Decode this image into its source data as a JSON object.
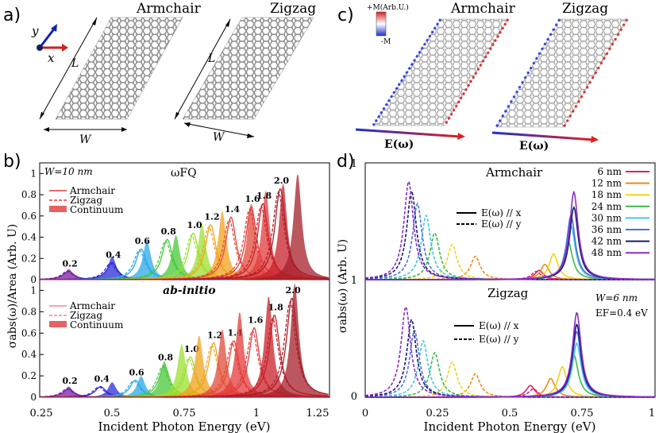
{
  "panels": {
    "a": "a)",
    "b": "b)",
    "c": "c)",
    "d": "d)"
  },
  "panel_a": {
    "title_left": "Armchair",
    "title_right": "Zigzag",
    "axis_y": "y",
    "axis_x": "x",
    "length_label": "L",
    "width_label_left": "W",
    "width_label_right": "W"
  },
  "panel_c": {
    "title_left": "Armchair",
    "title_right": "Zigzag",
    "colorbar_top": "+M(Arb.U.)",
    "colorbar_bottom": "-M",
    "field_left": "E(ω)",
    "field_right": "E(ω)"
  },
  "colors": {
    "armchair_red": "#e23a3a",
    "blue": "#2b2bd6",
    "lime": "#9be030"
  },
  "chart_data": [
    {
      "type": "line",
      "panel": "b-top",
      "title": "ωFQ",
      "annotation": "W=10 nm",
      "xlim": [
        0.25,
        1.25
      ],
      "ylim": [
        0,
        1.1
      ],
      "yticks": [
        "0",
        "0.2",
        "0.4",
        "0.6",
        "0.8",
        "1"
      ],
      "legend": [
        "Armchair",
        "Zigzag",
        "Continuum"
      ],
      "legend_position": "top-left",
      "series_fermi_eV": [
        0.2,
        0.4,
        0.6,
        0.8,
        1.0,
        1.2,
        1.4,
        1.6,
        1.8,
        2.0
      ],
      "series_labels": [
        "0.2",
        "0.4",
        "0.6",
        "0.8",
        "1.0",
        "1.2",
        "1.4",
        "1.6",
        "1.8",
        "2.0"
      ],
      "peak_x": [
        0.35,
        0.5,
        0.6,
        0.69,
        0.78,
        0.84,
        0.91,
        0.98,
        1.02,
        1.08
      ],
      "peak_y": [
        0.08,
        0.16,
        0.29,
        0.38,
        0.44,
        0.52,
        0.59,
        0.69,
        0.72,
        0.86
      ],
      "continuum_peak_x": [
        0.35,
        0.5,
        0.62,
        0.72,
        0.81,
        0.88,
        0.98,
        1.03,
        1.09,
        1.14
      ],
      "continuum_peak_y": [
        0.1,
        0.22,
        0.37,
        0.42,
        0.53,
        0.65,
        0.72,
        0.84,
        0.91,
        1.0
      ]
    },
    {
      "type": "line",
      "panel": "b-bottom",
      "title": "ab-initio",
      "xlim": [
        0.25,
        1.25
      ],
      "ylim": [
        0,
        1.1
      ],
      "yticks": [
        "0",
        "0.2",
        "0.4",
        "0.6",
        "0.8",
        "1"
      ],
      "xticks": [
        "0.25",
        "0.5",
        "0.75",
        "1",
        "1.25"
      ],
      "xlabel": "Incident Photon Energy (eV)",
      "ylabel": "σabs(ω)/Area (Arb. U)",
      "legend": [
        "Armchair",
        "Zigzag",
        "Continuum"
      ],
      "series_labels": [
        "0.2",
        "0.4",
        "0.6",
        "0.8",
        "1.0",
        "1.2",
        "1.4",
        "1.6",
        "1.8",
        "2.0"
      ],
      "peak_x": [
        0.35,
        0.46,
        0.58,
        0.68,
        0.77,
        0.85,
        0.92,
        0.99,
        1.06,
        1.12
      ],
      "peak_y": [
        0.08,
        0.1,
        0.16,
        0.3,
        0.38,
        0.51,
        0.53,
        0.65,
        0.77,
        0.93
      ],
      "continuum_peak_x": [
        0.35,
        0.5,
        0.6,
        0.68,
        0.74,
        0.8,
        0.88,
        0.94,
        1.04,
        1.13
      ],
      "continuum_peak_y": [
        0.1,
        0.14,
        0.2,
        0.34,
        0.5,
        0.58,
        0.64,
        0.8,
        0.95,
        1.07
      ]
    },
    {
      "type": "line",
      "panel": "d-top",
      "title": "Armchair",
      "xlim": [
        0,
        1
      ],
      "ylim": [
        0,
        1
      ],
      "yticks": [
        "1"
      ],
      "legend": [
        "E(ω) // x",
        "E(ω) // y"
      ],
      "widths_nm": [
        "6 nm",
        "12 nm",
        "18 nm",
        "24 nm",
        "30 nm",
        "36 nm",
        "42 nm",
        "48 nm"
      ],
      "width_colors": [
        "#d6246e",
        "#f08a1c",
        "#f2d21a",
        "#3cb84a",
        "#43c6e6",
        "#5070e0",
        "#1a1a6e",
        "#8a2cc9"
      ],
      "x_polarized_peak_x": [
        0.6,
        0.62,
        0.65,
        0.7,
        0.71,
        0.71,
        0.72,
        0.72
      ],
      "x_polarized_peak_y": [
        0.08,
        0.13,
        0.22,
        0.33,
        0.46,
        0.55,
        0.62,
        0.75
      ],
      "y_polarized_peak_x": [
        0.59,
        0.38,
        0.3,
        0.24,
        0.21,
        0.18,
        0.16,
        0.15
      ],
      "y_polarized_peak_y": [
        0.07,
        0.2,
        0.3,
        0.4,
        0.55,
        0.65,
        0.76,
        0.84
      ]
    },
    {
      "type": "line",
      "panel": "d-bottom",
      "title": "Zigzag",
      "annotation_w": "W=6 nm",
      "annotation_ef": "EF=0.4 eV",
      "xlim": [
        0,
        1
      ],
      "ylim": [
        0,
        1
      ],
      "yticks": [
        "0"
      ],
      "xticks": [
        "0",
        "0.25",
        "0.5",
        "0.75",
        "1"
      ],
      "xlabel": "Incident Photon Energy (eV)",
      "ylabel": "σabs(ω) (Arb. U)",
      "legend": [
        "E(ω) // x",
        "E(ω) // y"
      ],
      "x_polarized_peak_x": [
        0.57,
        0.64,
        0.68,
        0.72,
        0.73,
        0.73,
        0.73,
        0.73
      ],
      "x_polarized_peak_y": [
        0.1,
        0.16,
        0.26,
        0.36,
        0.46,
        0.56,
        0.62,
        0.72
      ],
      "y_polarized_peak_x": [
        0.58,
        0.38,
        0.3,
        0.24,
        0.2,
        0.17,
        0.16,
        0.14
      ],
      "y_polarized_peak_y": [
        0.07,
        0.2,
        0.3,
        0.38,
        0.48,
        0.57,
        0.66,
        0.77
      ]
    }
  ]
}
